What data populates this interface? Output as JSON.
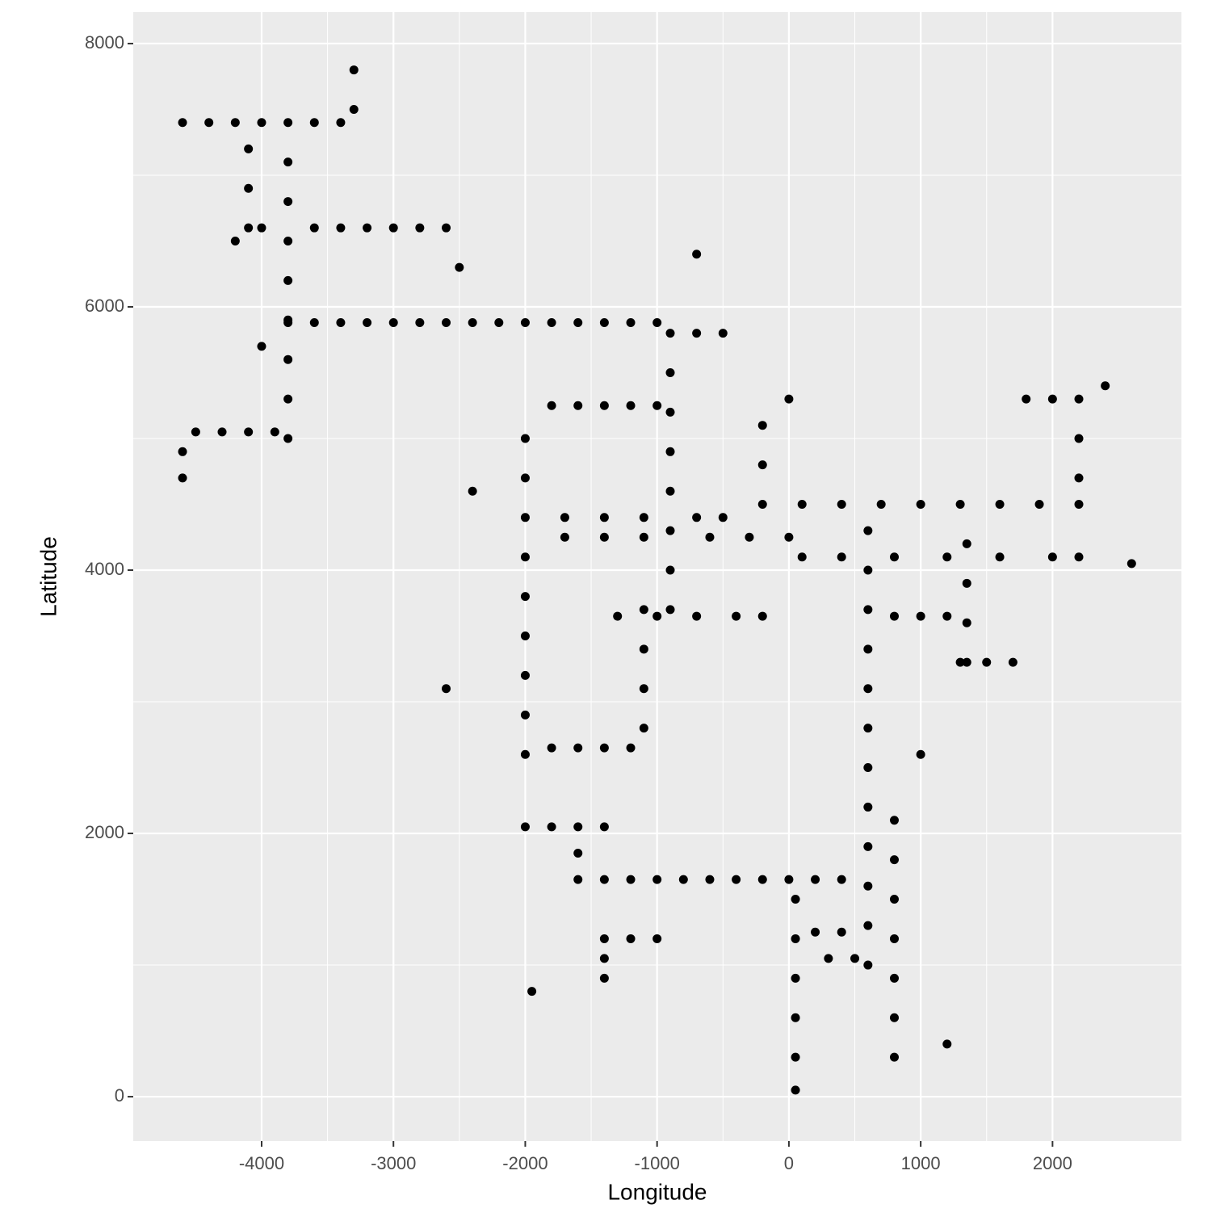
{
  "chart_data": {
    "type": "scatter",
    "x_label": "Longitude",
    "y_label": "Latitude",
    "color": "#000000",
    "x": [
      -3800,
      -3600,
      -3400,
      -3200,
      -3000,
      -2800,
      -2600,
      -2400,
      -2200,
      -2000,
      -1800,
      -1600,
      -1400,
      -1200,
      -1000,
      -900,
      -700,
      -500,
      -3800,
      -3800,
      -3800,
      -3800,
      -3800,
      -3800,
      -3800,
      -3800,
      -3800,
      -4600,
      -4400,
      -4200,
      -4000,
      -3600,
      -3400,
      -4100,
      -4100,
      -4100,
      -4000,
      -3600,
      -3400,
      -3200,
      -3000,
      -2800,
      -2600,
      -3300,
      -3300,
      -4500,
      -4300,
      -4100,
      -3900,
      -4600,
      -4600,
      -2000,
      -2000,
      -2000,
      -2000,
      -2000,
      -2000,
      -2000,
      -2000,
      -2000,
      -1800,
      -1600,
      -1400,
      -1200,
      -1100,
      -1100,
      -1100,
      -1100,
      -1800,
      -1600,
      -1400,
      -1200,
      -1000,
      -900,
      -900,
      -900,
      -900,
      -900,
      -900,
      -900,
      -1700,
      -1400,
      -1100,
      -700,
      -500,
      -1700,
      -1400,
      -1100,
      -600,
      -300,
      0,
      -1300,
      -1000,
      -700,
      -400,
      -200,
      -200,
      -200,
      -200,
      100,
      400,
      800,
      1200,
      1600,
      2000,
      2200,
      100,
      400,
      700,
      1000,
      1300,
      1600,
      1900,
      2200,
      2200,
      2200,
      2200,
      1800,
      2000,
      600,
      600,
      600,
      600,
      600,
      600,
      600,
      600,
      600,
      600,
      600,
      600,
      800,
      1000,
      1200,
      1350,
      1350,
      1350,
      1350,
      1300,
      1500,
      1700,
      -1600,
      -1400,
      -1200,
      -1000,
      -800,
      -600,
      -400,
      -200,
      0,
      200,
      400,
      800,
      800,
      800,
      800,
      800,
      800,
      800,
      50,
      50,
      50,
      50,
      50,
      50,
      200,
      400,
      300,
      500,
      -1600,
      -1600,
      -1400,
      -1200,
      -1000,
      -1400,
      -1400,
      -2000,
      -1800,
      -1400,
      -4200,
      -2400,
      -2600,
      2600,
      1000,
      -1950,
      1200,
      -4000,
      -700,
      0,
      -2500,
      2400
    ],
    "y": [
      5880,
      5880,
      5880,
      5880,
      5880,
      5880,
      5880,
      5880,
      5880,
      5880,
      5880,
      5880,
      5880,
      5880,
      5880,
      5800,
      5800,
      5800,
      5000,
      5300,
      5600,
      5900,
      6200,
      6500,
      6800,
      7100,
      7400,
      7400,
      7400,
      7400,
      7400,
      7400,
      7400,
      6600,
      6900,
      7200,
      6600,
      6600,
      6600,
      6600,
      6600,
      6600,
      6600,
      7500,
      7800,
      5050,
      5050,
      5050,
      5050,
      4700,
      4900,
      2600,
      2900,
      3200,
      3500,
      3800,
      4100,
      4400,
      4700,
      5000,
      2650,
      2650,
      2650,
      2650,
      2800,
      3100,
      3400,
      3700,
      5250,
      5250,
      5250,
      5250,
      5250,
      3700,
      4000,
      4300,
      4600,
      4900,
      5200,
      5500,
      4400,
      4400,
      4400,
      4400,
      4400,
      4250,
      4250,
      4250,
      4250,
      4250,
      4250,
      3650,
      3650,
      3650,
      3650,
      3650,
      4500,
      4800,
      5100,
      4100,
      4100,
      4100,
      4100,
      4100,
      4100,
      4100,
      4500,
      4500,
      4500,
      4500,
      4500,
      4500,
      4500,
      4500,
      4700,
      5000,
      5300,
      5300,
      5300,
      1000,
      1300,
      1600,
      1900,
      2200,
      2500,
      2800,
      3100,
      3400,
      3700,
      4000,
      4300,
      3650,
      3650,
      3650,
      3300,
      3600,
      3900,
      4200,
      3300,
      3300,
      3300,
      1650,
      1650,
      1650,
      1650,
      1650,
      1650,
      1650,
      1650,
      1650,
      1650,
      1650,
      300,
      600,
      900,
      1200,
      1500,
      1800,
      2100,
      50,
      300,
      600,
      900,
      1200,
      1500,
      1250,
      1250,
      1050,
      1050,
      1850,
      2050,
      1200,
      1200,
      1200,
      900,
      1050,
      2050,
      2050,
      2050,
      6500,
      4600,
      3100,
      4050,
      2600,
      800,
      400,
      5700,
      6400,
      5300,
      6300,
      5400
    ],
    "xlim": [
      -4974,
      2978
    ],
    "ylim": [
      -337,
      8239
    ],
    "xticks": [
      -4000,
      -3000,
      -2000,
      -1000,
      0,
      1000,
      2000
    ],
    "yticks": [
      0,
      2000,
      4000,
      6000,
      8000
    ],
    "grid": true,
    "minor_grid": true
  }
}
